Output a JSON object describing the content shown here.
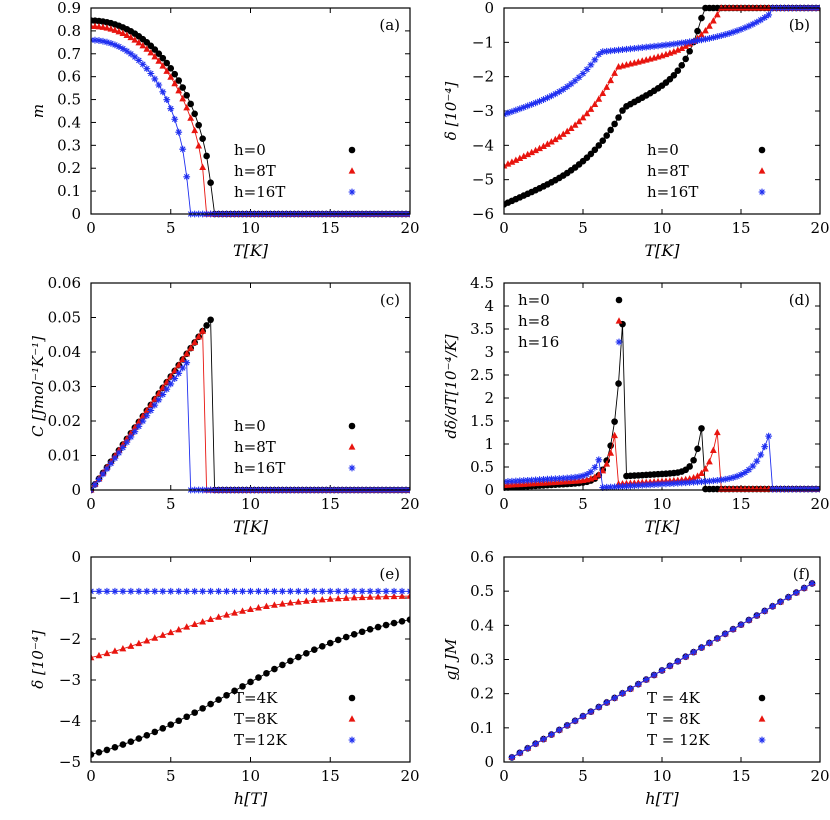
{
  "colors": {
    "black": "#000000",
    "red": "#e8150f",
    "blue": "#1f2ff0",
    "axis": "#000000"
  },
  "chart_data": [
    {
      "id": "a",
      "panel_label": "(a)",
      "type": "scatter",
      "xlabel": "T[K]",
      "ylabel": "m",
      "xlim": [
        0,
        20
      ],
      "ylim": [
        0,
        0.9
      ],
      "xticks": [
        "0",
        "5",
        "10",
        "15",
        "20"
      ],
      "yticks": [
        "0",
        "0.1",
        "0.2",
        "0.3",
        "0.4",
        "0.5",
        "0.6",
        "0.7",
        "0.8",
        "0.9"
      ],
      "legend": [
        "h=0",
        "h=8T",
        "h=16T"
      ],
      "legend_position": "lower-right",
      "series": [
        {
          "name": "h=0",
          "marker": "circle",
          "color": "black",
          "model": "order",
          "params": {
            "a": 0.845,
            "tc": 7.6,
            "p": 0.5,
            "xmax": 20
          }
        },
        {
          "name": "h=8T",
          "marker": "triangle",
          "color": "red",
          "model": "order",
          "params": {
            "a": 0.82,
            "tc": 7.2,
            "p": 0.48,
            "xmax": 20
          }
        },
        {
          "name": "h=16T",
          "marker": "star",
          "color": "blue",
          "model": "order",
          "params": {
            "a": 0.76,
            "tc": 6.1,
            "p": 0.45,
            "xmax": 20
          }
        }
      ]
    },
    {
      "id": "b",
      "panel_label": "(b)",
      "type": "scatter",
      "xlabel": "T[K]",
      "ylabel": "δ [10⁻⁴]",
      "xlim": [
        0,
        20
      ],
      "ylim": [
        -6,
        0
      ],
      "xticks": [
        "0",
        "5",
        "10",
        "15",
        "20"
      ],
      "yticks": [
        "−6",
        "−5",
        "−4",
        "−3",
        "−2",
        "−1",
        "0"
      ],
      "legend": [
        "h=0",
        "h=8T",
        "h=16T"
      ],
      "legend_position": "lower-right",
      "series": [
        {
          "name": "h=0",
          "marker": "circle",
          "color": "black",
          "model": "delta",
          "params": {
            "d0": -5.72,
            "tc": 7.6,
            "d1": -2.9,
            "t2": 12.6
          }
        },
        {
          "name": "h=8T",
          "marker": "triangle",
          "color": "red",
          "model": "delta",
          "params": {
            "d0": -4.6,
            "tc": 7.2,
            "d1": -1.72,
            "t2": 13.6
          }
        },
        {
          "name": "h=16T",
          "marker": "star",
          "color": "blue",
          "model": "delta",
          "params": {
            "d0": -3.1,
            "tc": 6.1,
            "d1": -1.28,
            "t2": 17.0
          }
        }
      ]
    },
    {
      "id": "c",
      "panel_label": "(c)",
      "type": "scatter",
      "xlabel": "T[K]",
      "ylabel": "C [Jmol⁻¹K⁻¹]",
      "xlim": [
        0,
        20
      ],
      "ylim": [
        0,
        0.06
      ],
      "xticks": [
        "0",
        "5",
        "10",
        "15",
        "20"
      ],
      "yticks": [
        "0",
        "0.01",
        "0.02",
        "0.03",
        "0.04",
        "0.05",
        "0.06"
      ],
      "legend": [
        "h=0",
        "h=8T",
        "h=16T"
      ],
      "legend_position": "lower-right",
      "series": [
        {
          "name": "h=0",
          "marker": "circle",
          "color": "black",
          "model": "heat",
          "params": {
            "slope": 0.00658,
            "tc": 7.6
          }
        },
        {
          "name": "h=8T",
          "marker": "triangle",
          "color": "red",
          "model": "heat",
          "params": {
            "slope": 0.00658,
            "tc": 7.2
          }
        },
        {
          "name": "h=16T",
          "marker": "star",
          "color": "blue",
          "model": "heat",
          "params": {
            "slope": 0.00615,
            "tc": 6.1
          }
        }
      ]
    },
    {
      "id": "d",
      "panel_label": "(d)",
      "type": "scatter",
      "xlabel": "T[K]",
      "ylabel": "dδ/dT[10⁻⁴/K]",
      "xlim": [
        0,
        20
      ],
      "ylim": [
        0,
        4.5
      ],
      "xticks": [
        "0",
        "5",
        "10",
        "15",
        "20"
      ],
      "yticks": [
        "0",
        "0.5",
        "1",
        "1.5",
        "2",
        "2.5",
        "3",
        "3.5",
        "4",
        "4.5"
      ],
      "legend": [
        "h=0",
        "h=8",
        "h=16"
      ],
      "legend_position": "upper-left",
      "series": [
        {
          "name": "h=0",
          "marker": "circle",
          "color": "black",
          "model": "deriv",
          "params": {
            "base": 0.05,
            "tc": 7.6,
            "jump": 0.3,
            "t2": 12.6,
            "after": 0.02,
            "peak": 4.1
          }
        },
        {
          "name": "h=8",
          "marker": "triangle",
          "color": "red",
          "model": "deriv",
          "params": {
            "base": 0.1,
            "tc": 7.2,
            "jump": 0.13,
            "t2": 13.6,
            "after": 0.02,
            "peak": 1.4
          }
        },
        {
          "name": "h=16",
          "marker": "star",
          "color": "blue",
          "model": "deriv",
          "params": {
            "base": 0.18,
            "tc": 6.1,
            "jump": 0.05,
            "t2": 17.0,
            "after": 0.02,
            "peak": 0.45
          }
        }
      ]
    },
    {
      "id": "e",
      "panel_label": "(e)",
      "type": "scatter",
      "xlabel": "h[T]",
      "ylabel": "δ [10⁻⁴]",
      "xlim": [
        0,
        20
      ],
      "ylim": [
        -5.5,
        0
      ],
      "xticks": [
        "0",
        "5",
        "10",
        "15",
        "20"
      ],
      "yticks": [
        "−5",
        "−4",
        "−3",
        "−2",
        "−1",
        "0"
      ],
      "legend": [
        "T=4K",
        "T=8K",
        "T=12K"
      ],
      "legend_position": "lower-right",
      "series": [
        {
          "name": "T=4K",
          "marker": "circle",
          "color": "black",
          "model": "field",
          "params": {
            "y0": -5.3,
            "y1": -1.68,
            "c": 9.0,
            "w": 5.0
          }
        },
        {
          "name": "T=8K",
          "marker": "triangle",
          "color": "red",
          "model": "field",
          "params": {
            "y0": -2.7,
            "y1": -1.05,
            "c": 4.5,
            "w": 3.6
          }
        },
        {
          "name": "T=12K",
          "marker": "star",
          "color": "blue",
          "model": "flat",
          "params": {
            "y0": -0.92
          }
        }
      ]
    },
    {
      "id": "f",
      "panel_label": "(f)",
      "type": "scatter",
      "xlabel": "h[T]",
      "ylabel": "gJ JM",
      "xlim": [
        0,
        20
      ],
      "ylim": [
        0,
        0.6
      ],
      "xticks": [
        "0",
        "5",
        "10",
        "15",
        "20"
      ],
      "yticks": [
        "0",
        "0.1",
        "0.2",
        "0.3",
        "0.4",
        "0.5",
        "0.6"
      ],
      "legend": [
        "T = 4K",
        "T = 8K",
        "T = 12K"
      ],
      "legend_position": "lower-right",
      "series": [
        {
          "name": "T = 4K",
          "marker": "circle",
          "color": "black",
          "model": "linear",
          "params": {
            "slope": 0.0268,
            "x0": 0.5,
            "x1": 19.5
          }
        },
        {
          "name": "T = 8K",
          "marker": "triangle",
          "color": "red",
          "model": "linear",
          "params": {
            "slope": 0.0268,
            "x0": 0.5,
            "x1": 19.5
          }
        },
        {
          "name": "T = 12K",
          "marker": "star",
          "color": "blue",
          "model": "linear",
          "params": {
            "slope": 0.0268,
            "x0": 0.5,
            "x1": 19.5
          }
        }
      ]
    }
  ]
}
